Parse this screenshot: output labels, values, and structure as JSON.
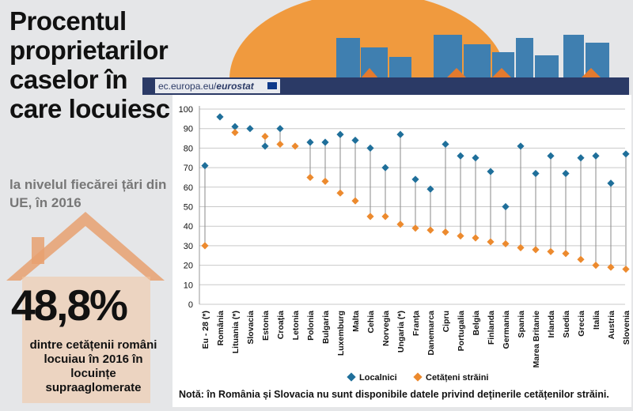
{
  "title": "Procentul proprietarilor caselor în care locuiesc",
  "subtitle": "la nivelul fiecărei țări din UE, în 2016",
  "source": {
    "prefix": "ec.europa.eu/",
    "name": "eurostat"
  },
  "highlight": {
    "value": "48,8%",
    "text": "dintre cetățenii români locuiau în 2016 în locuințe supraaglomerate"
  },
  "note": "Notă: în România și Slovacia nu sunt disponibile datele privind deținerile cetățenilor străini.",
  "colors": {
    "locals": "#1f6f9a",
    "foreigners": "#ec8a2e",
    "sun": "#f09a3e",
    "buildings": "#3f7fb0",
    "house": "#e8a070"
  },
  "chart_data": {
    "type": "scatter",
    "categories": [
      "Eu - 28 (*)",
      "România",
      "Lituania (*)",
      "Slovacia",
      "Estonia",
      "Croația",
      "Letonia",
      "Polonia",
      "Bulgaria",
      "Luxemburg",
      "Malta",
      "Cehia",
      "Norvegia",
      "Ungaria (*)",
      "Franța",
      "Danemarca",
      "Cipru",
      "Portugalia",
      "Belgia",
      "Finlanda",
      "Germania",
      "Spania",
      "Marea Britanie",
      "Irlanda",
      "Suedia",
      "Grecia",
      "Italia",
      "Austria",
      "Slovenia"
    ],
    "series": [
      {
        "name": "Localnici",
        "values": [
          71,
          96,
          91,
          90,
          81,
          90,
          null,
          83,
          83,
          87,
          84,
          80,
          70,
          87,
          64,
          59,
          82,
          76,
          75,
          68,
          50,
          81,
          67,
          76,
          67,
          75,
          76,
          62,
          77
        ]
      },
      {
        "name": "Cetățeni străini",
        "values": [
          30,
          null,
          88,
          null,
          86,
          82,
          81,
          65,
          63,
          57,
          53,
          45,
          45,
          41,
          39,
          38,
          37,
          35,
          34,
          32,
          31,
          29,
          28,
          27,
          26,
          23,
          20,
          19,
          18
        ]
      }
    ],
    "ylim": [
      0,
      100
    ],
    "yticks": [
      "0",
      "10",
      "20",
      "30",
      "40",
      "50",
      "60",
      "70",
      "80",
      "90",
      "100"
    ],
    "grid": true,
    "legend": "bottom"
  }
}
